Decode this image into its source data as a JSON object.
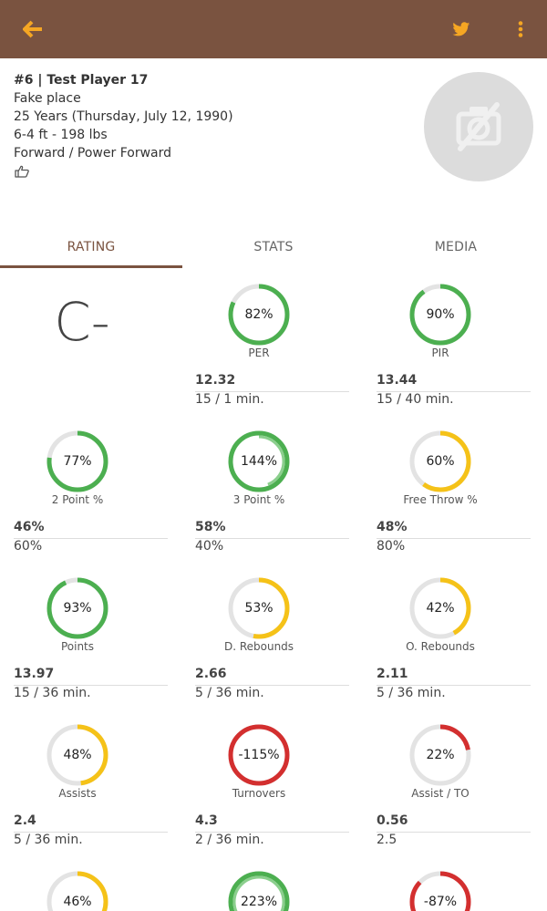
{
  "appbar": {
    "back_icon": "arrow-left-icon",
    "twitter_icon": "twitter-icon",
    "more_icon": "more-vert-icon",
    "accent": "#f5a623",
    "background": "#7a5340"
  },
  "player": {
    "title": "#6 | Test Player 17",
    "place": "Fake place",
    "age": "25 Years (Thursday, July 12, 1990)",
    "size": "6-4 ft - 198 lbs",
    "position": "Forward / Power Forward",
    "like_icon": "thumbs-up-icon",
    "photo_icon": "no-photo-icon"
  },
  "tabs": [
    {
      "label": "RATING"
    },
    {
      "label": "STATS"
    },
    {
      "label": "MEDIA"
    }
  ],
  "rating": {
    "grade": "C-",
    "stats": [
      {
        "label": "PER",
        "pct_text": "82%",
        "fill": 0.82,
        "color": "#4caf50",
        "over": 0,
        "value": "12.32",
        "sub": "15 / 1 min."
      },
      {
        "label": "PIR",
        "pct_text": "90%",
        "fill": 0.9,
        "color": "#4caf50",
        "over": 0,
        "value": "13.44",
        "sub": "15 / 40 min."
      },
      {
        "label": "2 Point %",
        "pct_text": "77%",
        "fill": 0.77,
        "color": "#4caf50",
        "over": 0,
        "value": "46%",
        "sub": "60%"
      },
      {
        "label": "3 Point %",
        "pct_text": "144%",
        "fill": 1.0,
        "color": "#4caf50",
        "over": 0.44,
        "value": "58%",
        "sub": "40%"
      },
      {
        "label": "Free Throw %",
        "pct_text": "60%",
        "fill": 0.6,
        "color": "#f5c218",
        "over": 0,
        "value": "48%",
        "sub": "80%"
      },
      {
        "label": "Points",
        "pct_text": "93%",
        "fill": 0.93,
        "color": "#4caf50",
        "over": 0,
        "value": "13.97",
        "sub": "15 / 36 min."
      },
      {
        "label": "D. Rebounds",
        "pct_text": "53%",
        "fill": 0.53,
        "color": "#f5c218",
        "over": 0,
        "value": "2.66",
        "sub": "5 / 36 min."
      },
      {
        "label": "O. Rebounds",
        "pct_text": "42%",
        "fill": 0.42,
        "color": "#f5c218",
        "over": 0,
        "value": "2.11",
        "sub": "5 / 36 min."
      },
      {
        "label": "Assists",
        "pct_text": "48%",
        "fill": 0.48,
        "color": "#f5c218",
        "over": 0,
        "value": "2.4",
        "sub": "5 / 36 min."
      },
      {
        "label": "Turnovers",
        "pct_text": "-115%",
        "fill": 1.0,
        "color": "#d32f2f",
        "over": 0,
        "value": "4.3",
        "sub": "2 / 36 min."
      },
      {
        "label": "Assist / TO",
        "pct_text": "22%",
        "fill": 0.22,
        "color": "#d32f2f",
        "over": 0,
        "value": "0.56",
        "sub": "2.5"
      },
      {
        "label": "",
        "pct_text": "46%",
        "fill": 0.46,
        "color": "#f5c218",
        "over": 0,
        "value": "",
        "sub": ""
      },
      {
        "label": "",
        "pct_text": "223%",
        "fill": 1.0,
        "color": "#4caf50",
        "over": 1.0,
        "value": "",
        "sub": ""
      },
      {
        "label": "",
        "pct_text": "-87%",
        "fill": 0.87,
        "color": "#d32f2f",
        "over": 0,
        "value": "",
        "sub": ""
      }
    ]
  }
}
